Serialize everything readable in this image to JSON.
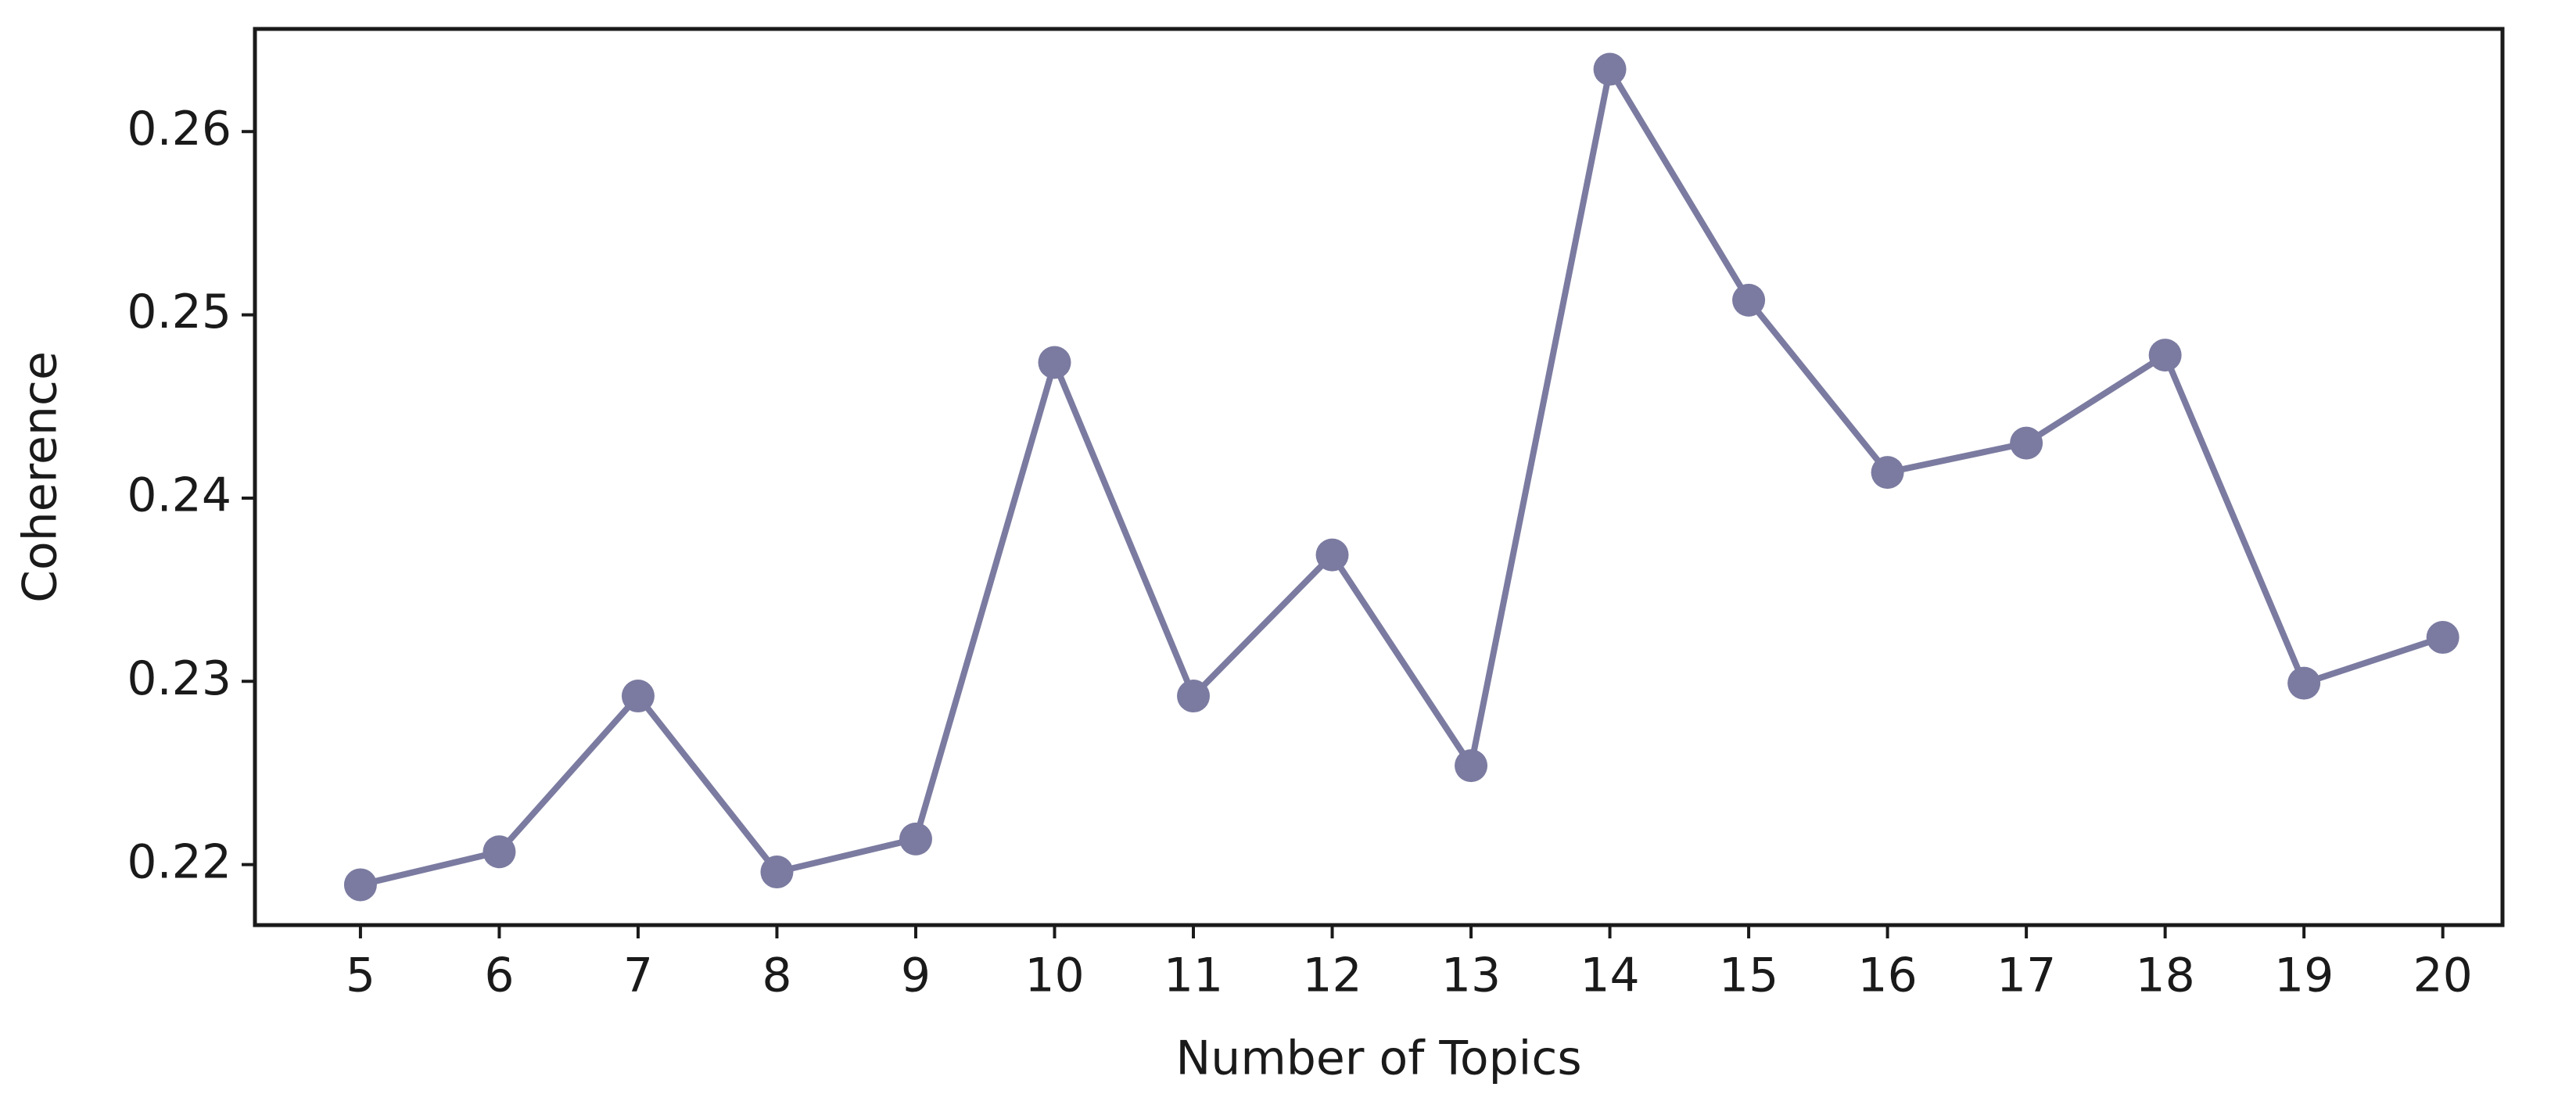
{
  "chart_data": {
    "type": "line",
    "x_label": "Number of Topics",
    "y_label": "Coherence",
    "x": [
      5,
      6,
      7,
      8,
      9,
      10,
      11,
      12,
      13,
      14,
      15,
      16,
      17,
      18,
      19,
      20
    ],
    "series": [
      {
        "color": "#7b7ba1",
        "values": [
          0.2189,
          0.2207,
          0.2292,
          0.2196,
          0.2214,
          0.2474,
          0.2292,
          0.2369,
          0.2254,
          0.2634,
          0.2508,
          0.2414,
          0.243,
          0.2478,
          0.2299,
          0.2324
        ]
      }
    ],
    "xlim": [
      4.24,
      20.43
    ],
    "ylim": [
      0.2167,
      0.2656
    ],
    "xticks": [
      5,
      6,
      7,
      8,
      9,
      10,
      11,
      12,
      13,
      14,
      15,
      16,
      17,
      18,
      19,
      20
    ],
    "yticks": [
      0.22,
      0.23,
      0.24,
      0.25,
      0.26
    ]
  }
}
